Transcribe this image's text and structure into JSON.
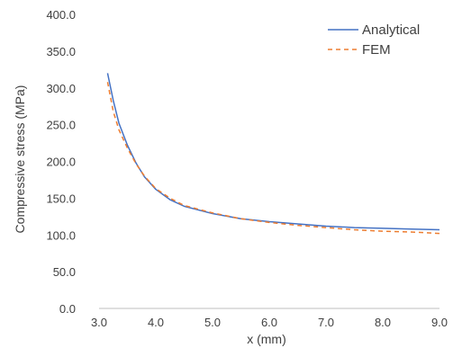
{
  "chart_data": {
    "type": "line",
    "title": "",
    "xlabel": "x (mm)",
    "ylabel": "Compressive stress (MPa)",
    "xlim": [
      3.0,
      9.0
    ],
    "ylim": [
      0.0,
      400.0
    ],
    "x_ticks": [
      3.0,
      4.0,
      5.0,
      6.0,
      7.0,
      8.0,
      9.0
    ],
    "y_ticks": [
      0.0,
      50.0,
      100.0,
      150.0,
      200.0,
      250.0,
      300.0,
      350.0,
      400.0
    ],
    "x_tick_labels": [
      "3.0",
      "4.0",
      "5.0",
      "6.0",
      "7.0",
      "8.0",
      "9.0"
    ],
    "y_tick_labels": [
      "0.0",
      "50.0",
      "100.0",
      "150.0",
      "200.0",
      "250.0",
      "300.0",
      "350.0",
      "400.0"
    ],
    "grid": false,
    "legend_position": "top-right",
    "series": [
      {
        "name": "Analytical",
        "color": "#4472C4",
        "style": "solid",
        "x": [
          3.15,
          3.25,
          3.35,
          3.5,
          3.65,
          3.8,
          4.0,
          4.25,
          4.5,
          5.0,
          5.5,
          6.0,
          6.5,
          7.0,
          7.5,
          8.0,
          8.5,
          9.0
        ],
        "y": [
          320,
          283,
          252,
          222,
          198,
          179,
          162,
          148,
          139,
          129,
          122,
          118,
          115,
          112,
          110,
          109,
          108,
          107
        ]
      },
      {
        "name": "FEM",
        "color": "#ED7D31",
        "style": "dashed",
        "x": [
          3.15,
          3.25,
          3.35,
          3.5,
          3.65,
          3.8,
          4.0,
          4.25,
          4.5,
          5.0,
          5.5,
          6.0,
          6.5,
          7.0,
          7.5,
          8.0,
          8.5,
          9.0
        ],
        "y": [
          308,
          268,
          243,
          218,
          197,
          180,
          163,
          150,
          140,
          130,
          122,
          117,
          113,
          110,
          107,
          105,
          104,
          102
        ]
      }
    ]
  }
}
